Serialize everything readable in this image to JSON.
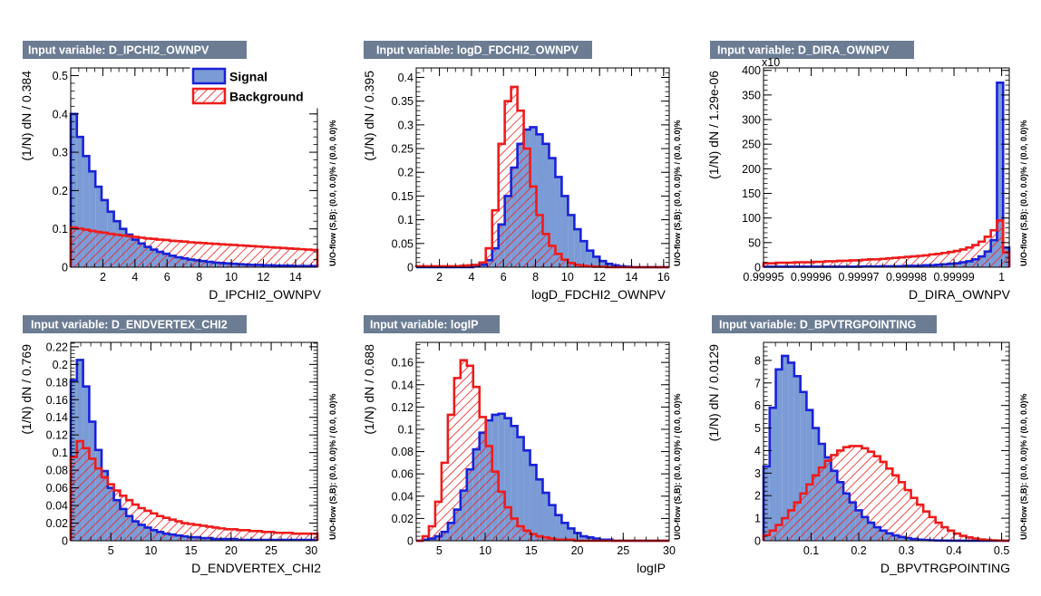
{
  "legend": {
    "signal_label": "Signal",
    "background_label": "Background",
    "signal_fill": "#7b9bd6",
    "signal_line": "#1a22d8",
    "background_line": "#ef1c1c"
  },
  "chart_data": [
    {
      "type": "bar",
      "title": "Input variable: D_IPCHI2_OWNPV",
      "xlabel": "D_IPCHI2_OWNPV",
      "ylabel": "(1/N) dN / 0.384",
      "side_label": "U/O-flow (S,B): (0.0, 0.0)% / (0.0, 0.0)%",
      "xlim": [
        0,
        15.36
      ],
      "ylim": [
        0,
        0.52
      ],
      "xticks": [
        2,
        4,
        6,
        8,
        10,
        12,
        14
      ],
      "xtick_labels": [
        "2",
        "4",
        "6",
        "8",
        "10",
        "12",
        "14"
      ],
      "yticks": [
        0,
        0.1,
        0.2,
        0.3,
        0.4,
        0.5
      ],
      "ytick_labels": [
        "0",
        "0.1",
        "0.2",
        "0.3",
        "0.4",
        "0.5"
      ],
      "signal": [
        0.4,
        0.34,
        0.29,
        0.25,
        0.21,
        0.175,
        0.145,
        0.12,
        0.1,
        0.085,
        0.072,
        0.062,
        0.053,
        0.046,
        0.04,
        0.035,
        0.03,
        0.026,
        0.023,
        0.02,
        0.018,
        0.016,
        0.014,
        0.012,
        0.011,
        0.01,
        0.009,
        0.008,
        0.007,
        0.006,
        0.006,
        0.005,
        0.005,
        0.004,
        0.004,
        0.004,
        0.003,
        0.003,
        0.003,
        0.003
      ],
      "background": [
        0.104,
        0.101,
        0.098,
        0.095,
        0.092,
        0.09,
        0.087,
        0.085,
        0.083,
        0.081,
        0.079,
        0.077,
        0.075,
        0.074,
        0.072,
        0.071,
        0.069,
        0.068,
        0.067,
        0.065,
        0.064,
        0.063,
        0.062,
        0.061,
        0.06,
        0.059,
        0.058,
        0.057,
        0.056,
        0.055,
        0.054,
        0.053,
        0.052,
        0.051,
        0.05,
        0.049,
        0.048,
        0.047,
        0.046,
        0.045
      ]
    },
    {
      "type": "bar",
      "title": "Input variable: logD_FDCHI2_OWNPV",
      "xlabel": "logD_FDCHI2_OWNPV",
      "ylabel": "(1/N) dN / 0.395",
      "side_label": "U/O-flow (S,B): (0.0, 0.0)% / (0.0, 0.0)%",
      "xlim": [
        0.55,
        16.35
      ],
      "ylim": [
        0,
        0.42
      ],
      "xticks": [
        2,
        4,
        6,
        8,
        10,
        12,
        14,
        16
      ],
      "xtick_labels": [
        "2",
        "4",
        "6",
        "8",
        "10",
        "12",
        "14",
        "16"
      ],
      "yticks": [
        0,
        0.05,
        0.1,
        0.15,
        0.2,
        0.25,
        0.3,
        0.35,
        0.4
      ],
      "ytick_labels": [
        "0",
        "0.05",
        "0.1",
        "0.15",
        "0.2",
        "0.25",
        "0.3",
        "0.35",
        "0.4"
      ],
      "signal": [
        0,
        0,
        0,
        0,
        0,
        0,
        0,
        0,
        0,
        0.002,
        0.005,
        0.015,
        0.04,
        0.09,
        0.15,
        0.21,
        0.26,
        0.29,
        0.295,
        0.28,
        0.26,
        0.23,
        0.19,
        0.15,
        0.11,
        0.08,
        0.055,
        0.035,
        0.022,
        0.013,
        0.007,
        0.004,
        0.002,
        0.001,
        0,
        0,
        0,
        0,
        0,
        0
      ],
      "background": [
        0.002,
        0.002,
        0.002,
        0.002,
        0.002,
        0.002,
        0.002,
        0.003,
        0.004,
        0.005,
        0.01,
        0.04,
        0.12,
        0.26,
        0.35,
        0.38,
        0.33,
        0.25,
        0.17,
        0.11,
        0.07,
        0.045,
        0.028,
        0.016,
        0.009,
        0.005,
        0.003,
        0.002,
        0.001,
        0.001,
        0,
        0,
        0,
        0,
        0,
        0,
        0,
        0,
        0,
        0
      ]
    },
    {
      "type": "bar",
      "title": "Input variable: D_DIRA_OWNPV",
      "xlabel": "D_DIRA_OWNPV",
      "ylabel": "(1/N) dN / 1.29e-06",
      "side_label": "U/O-flow (S,B): (0.0, 0.0)% / (0.0, 0.0)%",
      "exponent_label": "x10",
      "xlim": [
        0.99995,
        1.0000016
      ],
      "ylim": [
        0,
        405
      ],
      "xticks": [
        0.99995,
        0.99996,
        0.99997,
        0.99998,
        0.99999,
        1.0
      ],
      "xtick_labels": [
        "0.99995",
        "0.99996",
        "0.99997",
        "0.99998",
        "0.99999",
        "1"
      ],
      "yticks": [
        0,
        50,
        100,
        150,
        200,
        250,
        300,
        350,
        400
      ],
      "ytick_labels": [
        "0",
        "50",
        "100",
        "150",
        "200",
        "250",
        "300",
        "350",
        "400"
      ],
      "signal": [
        1,
        1,
        1,
        1,
        1,
        1,
        1,
        1,
        1,
        1,
        1,
        1,
        1,
        1,
        1,
        1,
        1.5,
        1.5,
        1.5,
        2,
        2,
        2,
        2,
        3,
        3,
        3,
        4,
        4,
        5,
        6,
        7,
        8,
        10,
        12,
        16,
        22,
        32,
        55,
        375,
        40
      ],
      "background": [
        8,
        8,
        9,
        9,
        9,
        10,
        10,
        10,
        11,
        11,
        12,
        12,
        13,
        13,
        14,
        14,
        15,
        16,
        16,
        17,
        18,
        19,
        20,
        21,
        22,
        23,
        24,
        26,
        27,
        29,
        31,
        33,
        36,
        40,
        45,
        52,
        62,
        75,
        95,
        30
      ]
    },
    {
      "type": "bar",
      "title": "Input variable: D_ENDVERTEX_CHI2",
      "xlabel": "D_ENDVERTEX_CHI2",
      "ylabel": "(1/N) dN / 0.769",
      "side_label": "U/O-flow (S,B): (0.0, 0.0)% / (0.0, 0.0)%",
      "xlim": [
        0,
        30.76
      ],
      "ylim": [
        0,
        0.225
      ],
      "xticks": [
        5,
        10,
        15,
        20,
        25,
        30
      ],
      "xtick_labels": [
        "5",
        "10",
        "15",
        "20",
        "25",
        "30"
      ],
      "yticks": [
        0,
        0.02,
        0.04,
        0.06,
        0.08,
        0.1,
        0.12,
        0.14,
        0.16,
        0.18,
        0.2,
        0.22
      ],
      "ytick_labels": [
        "0",
        "0.02",
        "0.04",
        "0.06",
        "0.08",
        "0.1",
        "0.12",
        "0.14",
        "0.16",
        "0.18",
        "0.2",
        "0.22"
      ],
      "signal": [
        0.182,
        0.205,
        0.175,
        0.135,
        0.103,
        0.079,
        0.06,
        0.046,
        0.036,
        0.028,
        0.022,
        0.018,
        0.015,
        0.012,
        0.01,
        0.008,
        0.007,
        0.006,
        0.005,
        0.004,
        0.004,
        0.003,
        0.003,
        0.002,
        0.002,
        0.002,
        0.002,
        0.001,
        0.001,
        0.001,
        0.001,
        0.001,
        0.001,
        0.001,
        0.001,
        0.001,
        0.001,
        0.001,
        0.001,
        0.001
      ],
      "background": [
        0.095,
        0.113,
        0.105,
        0.093,
        0.082,
        0.072,
        0.064,
        0.057,
        0.051,
        0.046,
        0.041,
        0.037,
        0.034,
        0.031,
        0.028,
        0.026,
        0.024,
        0.022,
        0.02,
        0.019,
        0.018,
        0.017,
        0.016,
        0.015,
        0.014,
        0.013,
        0.013,
        0.012,
        0.012,
        0.011,
        0.011,
        0.01,
        0.01,
        0.009,
        0.009,
        0.009,
        0.008,
        0.008,
        0.008,
        0.008
      ]
    },
    {
      "type": "bar",
      "title": "Input variable: logIP",
      "xlabel": "logIP",
      "ylabel": "(1/N) dN / 0.688",
      "side_label": "U/O-flow (S,B): (0.0, 0.0)% / (0.0, 0.0)%",
      "xlim": [
        2.5,
        30.0
      ],
      "ylim": [
        0,
        0.178
      ],
      "xticks": [
        5,
        10,
        15,
        20,
        25,
        30
      ],
      "xtick_labels": [
        "5",
        "10",
        "15",
        "20",
        "25",
        "30"
      ],
      "yticks": [
        0,
        0.02,
        0.04,
        0.06,
        0.08,
        0.1,
        0.12,
        0.14,
        0.16
      ],
      "ytick_labels": [
        "0",
        "0.02",
        "0.04",
        "0.06",
        "0.08",
        "0.1",
        "0.12",
        "0.14",
        "0.16"
      ],
      "signal": [
        0,
        0.001,
        0.002,
        0.004,
        0.008,
        0.016,
        0.028,
        0.045,
        0.064,
        0.082,
        0.097,
        0.108,
        0.113,
        0.114,
        0.11,
        0.103,
        0.093,
        0.081,
        0.068,
        0.055,
        0.043,
        0.032,
        0.023,
        0.016,
        0.011,
        0.007,
        0.004,
        0.003,
        0.002,
        0.001,
        0.001,
        0,
        0,
        0,
        0,
        0,
        0,
        0,
        0,
        0
      ],
      "background": [
        0,
        0.004,
        0.013,
        0.035,
        0.07,
        0.113,
        0.146,
        0.162,
        0.157,
        0.138,
        0.111,
        0.085,
        0.062,
        0.044,
        0.03,
        0.02,
        0.013,
        0.009,
        0.006,
        0.004,
        0.003,
        0.002,
        0.001,
        0.001,
        0.001,
        0,
        0,
        0,
        0,
        0,
        0,
        0,
        0,
        0,
        0,
        0,
        0,
        0,
        0,
        0
      ]
    },
    {
      "type": "bar",
      "title": "Input variable: D_BPVTRGPOINTING",
      "xlabel": "D_BPVTRGPOINTING",
      "ylabel": "(1/N) dN / 0.0129",
      "side_label": "U/O-flow (S,B): (0.0, 0.0)% / (0.0, 0.0)%",
      "xlim": [
        0,
        0.516
      ],
      "ylim": [
        0,
        8.8
      ],
      "xticks": [
        0.1,
        0.2,
        0.3,
        0.4,
        0.5
      ],
      "xtick_labels": [
        "0.1",
        "0.2",
        "0.3",
        "0.4",
        "0.5"
      ],
      "yticks": [
        0,
        1,
        2,
        3,
        4,
        5,
        6,
        7,
        8
      ],
      "ytick_labels": [
        "0",
        "1",
        "2",
        "3",
        "4",
        "5",
        "6",
        "7",
        "8"
      ],
      "signal": [
        3.3,
        5.9,
        7.6,
        8.2,
        7.9,
        7.3,
        6.6,
        5.8,
        5.0,
        4.3,
        3.7,
        3.1,
        2.6,
        2.1,
        1.7,
        1.35,
        1.05,
        0.8,
        0.6,
        0.45,
        0.33,
        0.24,
        0.17,
        0.12,
        0.08,
        0.05,
        0.035,
        0.02,
        0.012,
        0.007,
        0.004,
        0.002,
        0.001,
        0,
        0,
        0,
        0,
        0,
        0,
        0
      ],
      "background": [
        0.25,
        0.45,
        0.7,
        1.0,
        1.35,
        1.7,
        2.1,
        2.5,
        2.9,
        3.25,
        3.55,
        3.8,
        4.0,
        4.15,
        4.2,
        4.2,
        4.1,
        3.95,
        3.75,
        3.5,
        3.2,
        2.9,
        2.6,
        2.25,
        1.9,
        1.6,
        1.3,
        1.05,
        0.8,
        0.6,
        0.45,
        0.32,
        0.22,
        0.15,
        0.1,
        0.06,
        0.04,
        0.02,
        0.01,
        0
      ]
    }
  ]
}
